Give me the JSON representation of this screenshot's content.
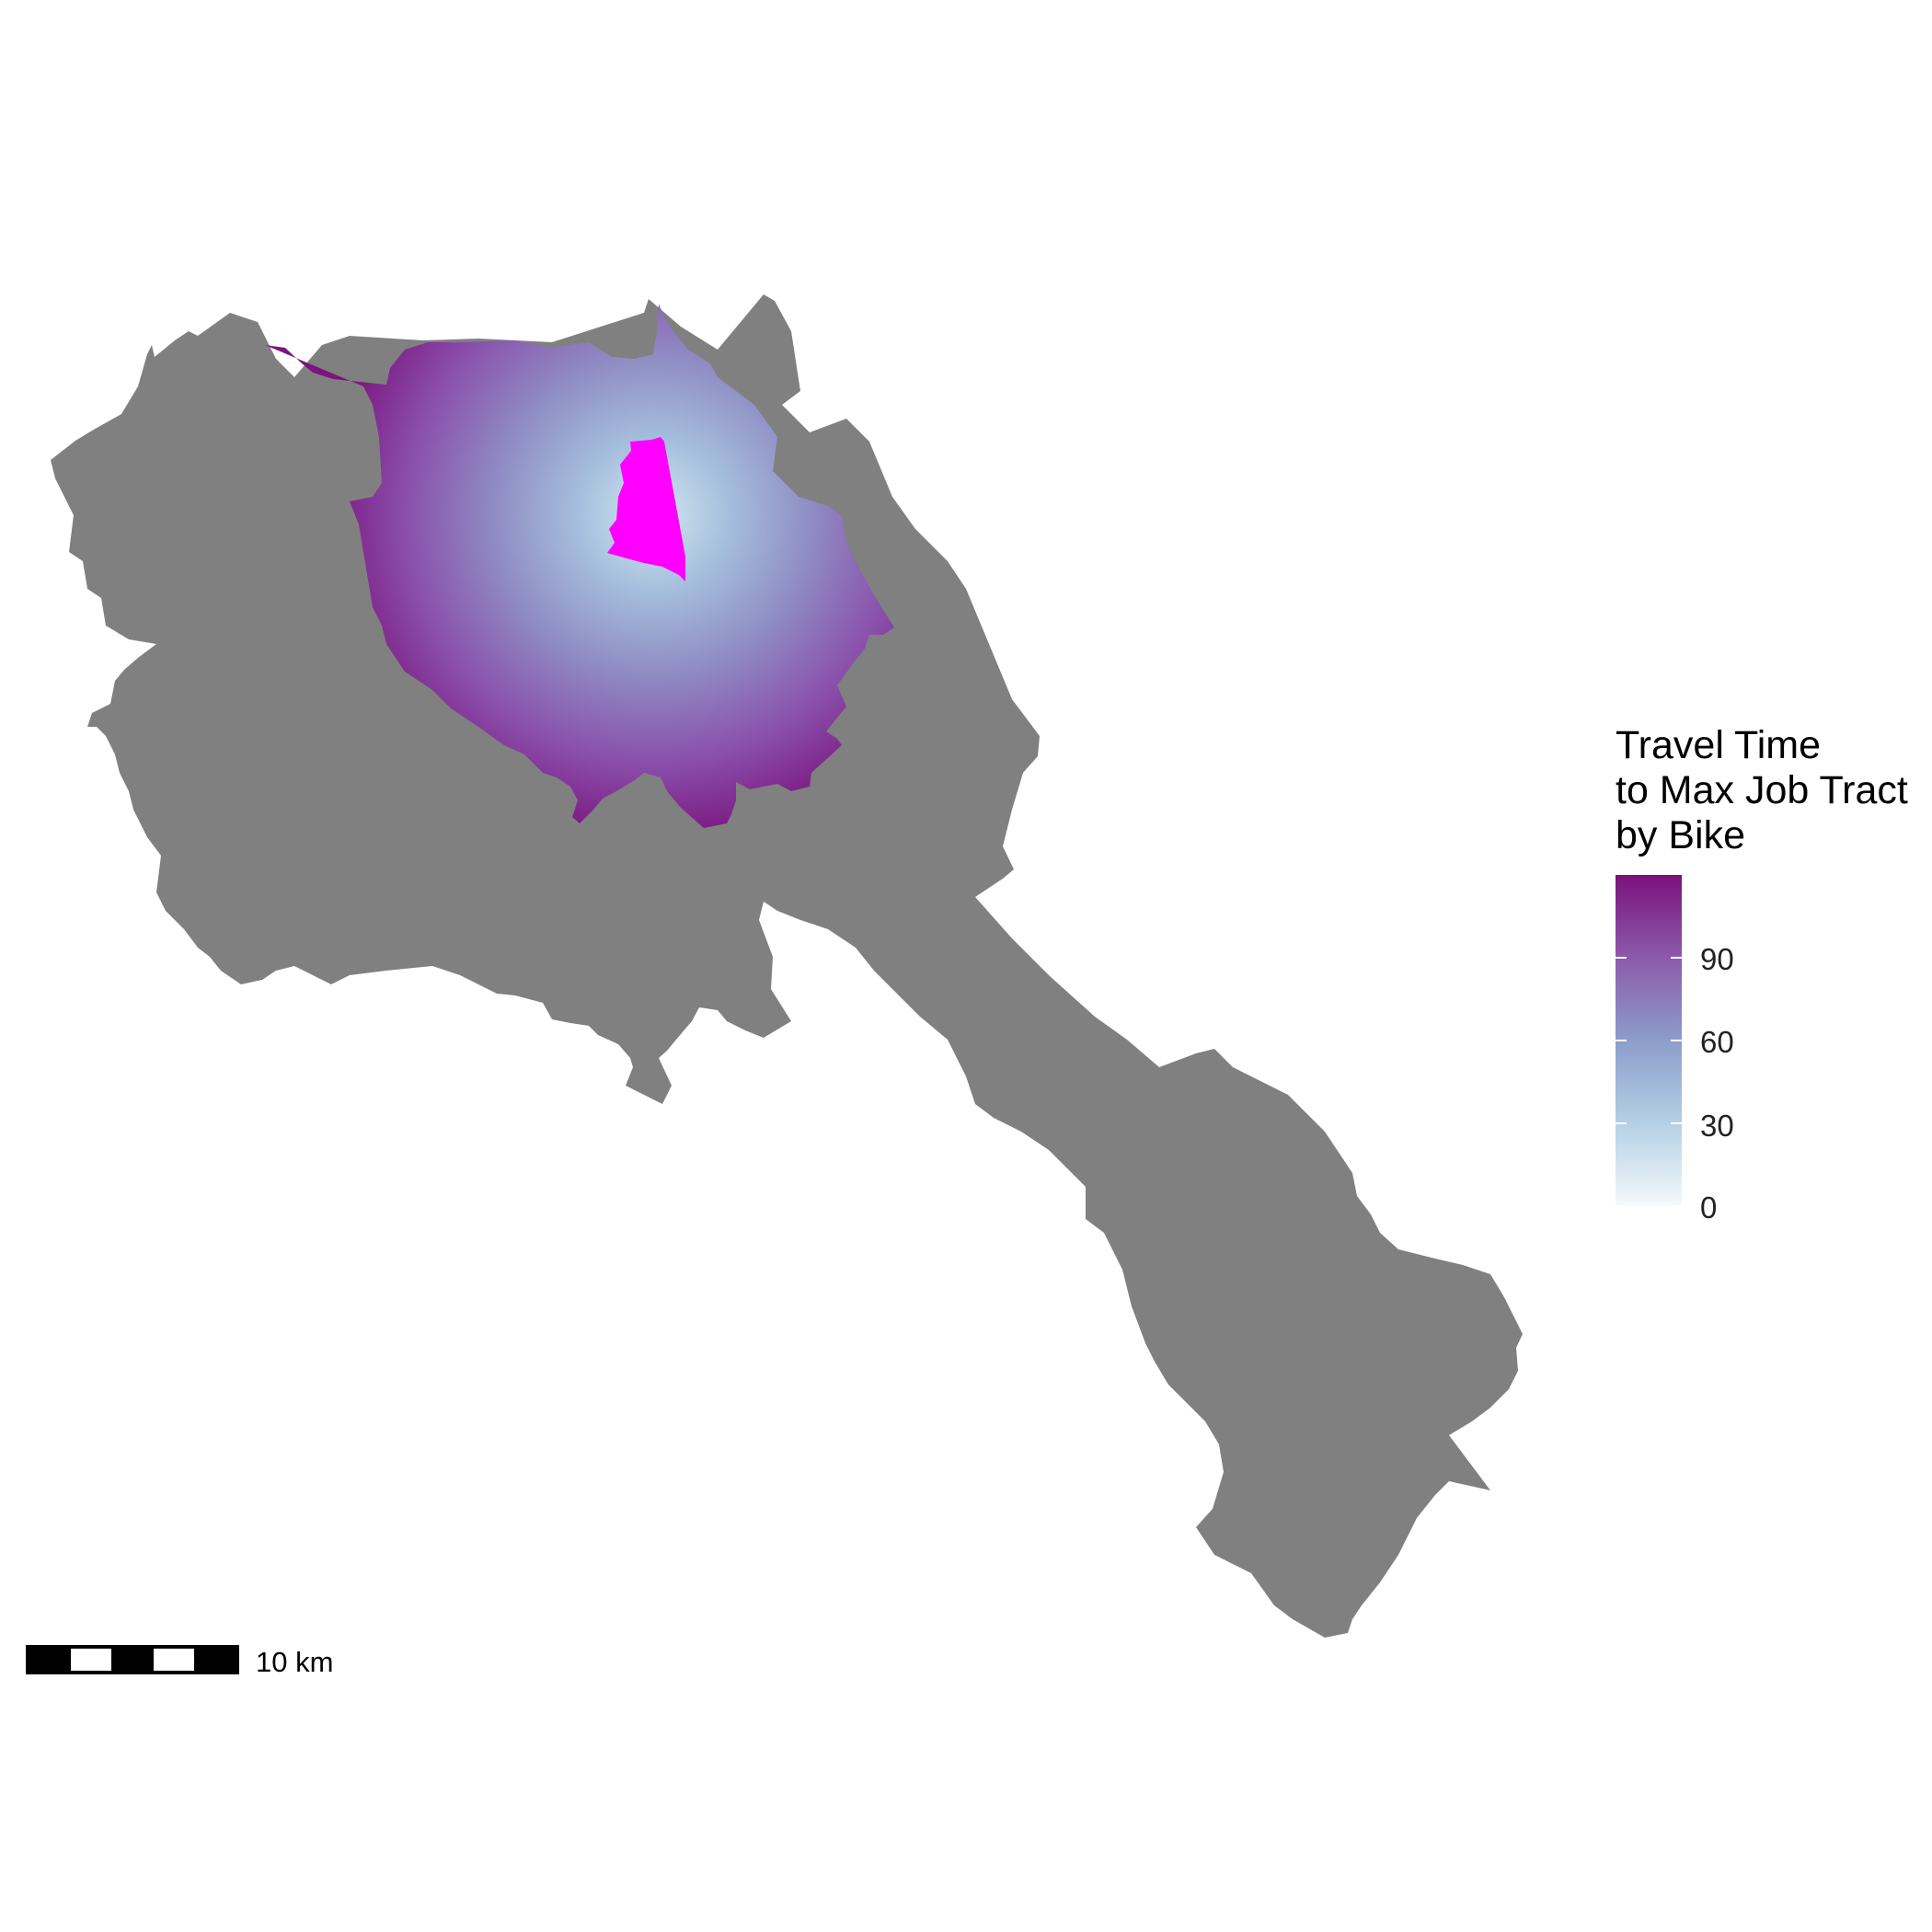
{
  "legend": {
    "title_lines": [
      "Travel Time",
      "to Max Job Tract",
      "by Bike"
    ],
    "ticks": [
      "90",
      "60",
      "30",
      "0"
    ],
    "tick_values": [
      90,
      60,
      30,
      0
    ],
    "range": [
      0,
      120
    ],
    "colors": {
      "low": "#f4f9fc",
      "mid_low": "#a9c6e0",
      "mid": "#8c96c6",
      "mid_high": "#8c56ab",
      "high": "#7a127c"
    }
  },
  "map": {
    "background_region_color": "#808080",
    "destination_tract_color": "#ff00ff"
  },
  "scalebar": {
    "label": "10 km"
  }
}
